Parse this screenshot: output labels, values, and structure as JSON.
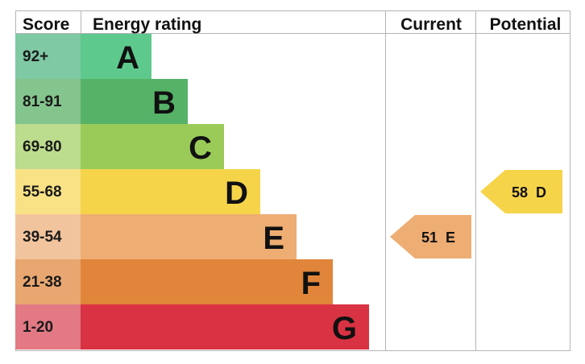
{
  "chart_data": {
    "type": "bar",
    "headers": {
      "score": "Score",
      "rating": "Energy rating",
      "current": "Current",
      "potential": "Potential"
    },
    "bands": [
      {
        "letter": "A",
        "range": "92+",
        "min": 92,
        "max": 100,
        "color": "#5ec98d",
        "score_color": "#7fc9a4"
      },
      {
        "letter": "B",
        "range": "81-91",
        "min": 81,
        "max": 91,
        "color": "#56b267",
        "score_color": "#84c48d"
      },
      {
        "letter": "C",
        "range": "69-80",
        "min": 69,
        "max": 80,
        "color": "#9acb59",
        "score_color": "#bcdc8e"
      },
      {
        "letter": "D",
        "range": "55-68",
        "min": 55,
        "max": 68,
        "color": "#f6d44a",
        "score_color": "#f9e285"
      },
      {
        "letter": "E",
        "range": "39-54",
        "min": 39,
        "max": 54,
        "color": "#eead73",
        "score_color": "#f2c49d"
      },
      {
        "letter": "F",
        "range": "21-38",
        "min": 21,
        "max": 38,
        "color": "#e0853a",
        "score_color": "#e8a770"
      },
      {
        "letter": "G",
        "range": "1-20",
        "min": 1,
        "max": 20,
        "color": "#d93243",
        "score_color": "#e27984"
      }
    ],
    "current": {
      "value": 51,
      "letter": "E",
      "label": "51  E",
      "color": "#eead73"
    },
    "potential": {
      "value": 58,
      "letter": "D",
      "label": "58  D",
      "color": "#f6d44a"
    }
  }
}
